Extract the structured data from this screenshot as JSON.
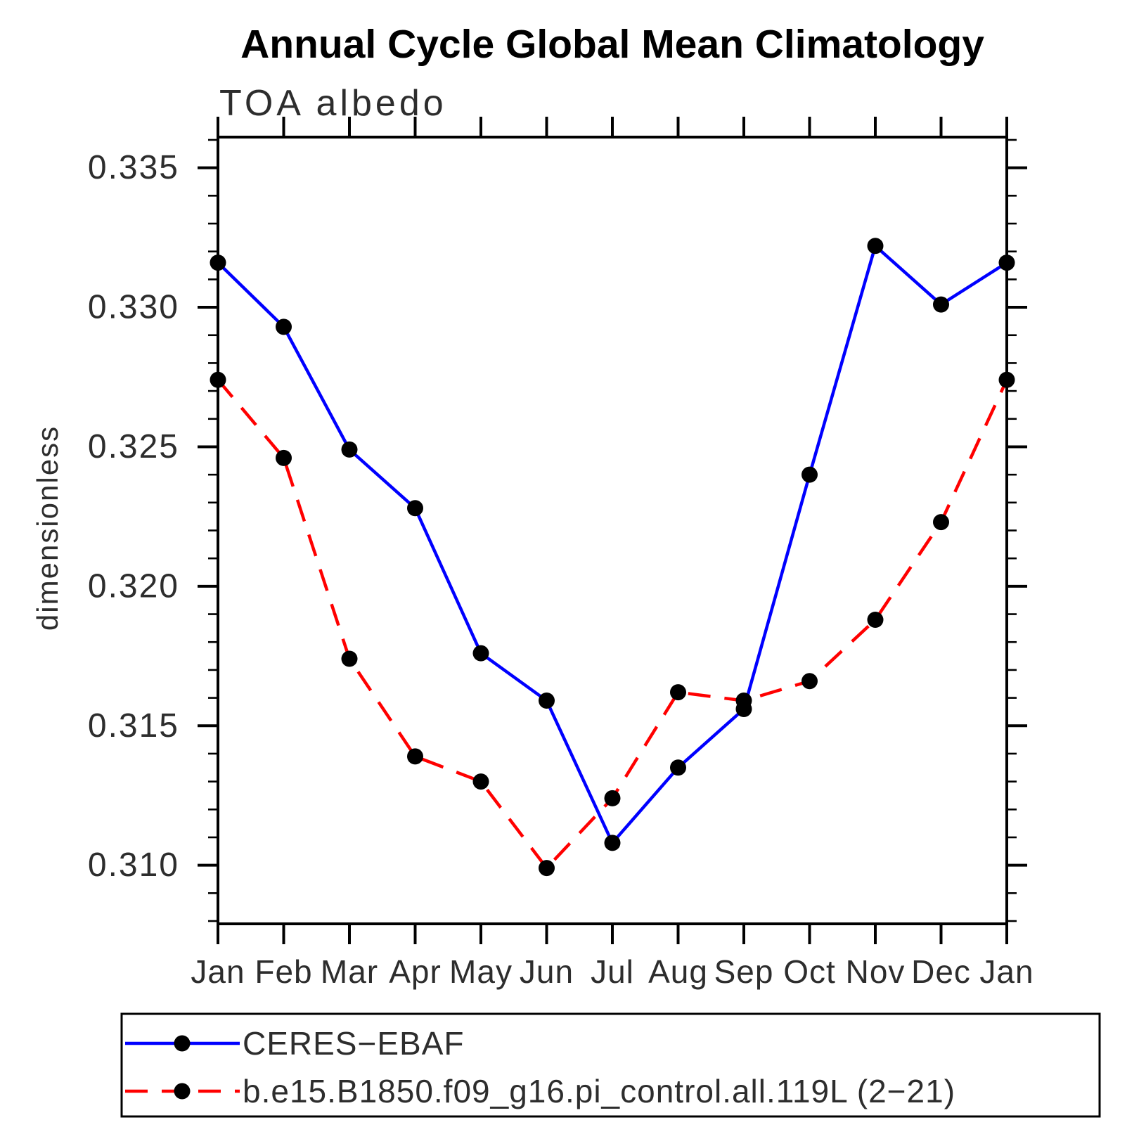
{
  "title": "Annual Cycle Global Mean Climatology",
  "subtitle": "TOA albedo",
  "y_axis_label": "dimensionless",
  "chart_data": {
    "type": "line",
    "title": "Annual Cycle Global Mean Climatology",
    "subtitle": "TOA albedo",
    "xlabel": "",
    "ylabel": "dimensionless",
    "categories": [
      "Jan",
      "Feb",
      "Mar",
      "Apr",
      "May",
      "Jun",
      "Jul",
      "Aug",
      "Sep",
      "Oct",
      "Nov",
      "Dec",
      "Jan"
    ],
    "series": [
      {
        "name": "CERES−EBAF",
        "color": "#0000ff",
        "line_style": "solid",
        "marker": "circle",
        "marker_color": "#000000",
        "values": [
          0.3316,
          0.3293,
          0.3249,
          0.3228,
          0.3176,
          0.3159,
          0.3108,
          0.3135,
          0.3156,
          0.324,
          0.3322,
          0.3301,
          0.3316
        ]
      },
      {
        "name": "b.e15.B1850.f09_g16.pi_control.all.119L (2−21)",
        "color": "#ff0000",
        "line_style": "dashed",
        "marker": "circle",
        "marker_color": "#000000",
        "values": [
          0.3274,
          0.3246,
          0.3174,
          0.3139,
          0.313,
          0.3099,
          0.3124,
          0.3162,
          0.3159,
          0.3166,
          0.3188,
          0.3223,
          0.3274
        ]
      }
    ],
    "ylim": [
      0.3079,
      0.3361
    ],
    "yticks_major": [
      0.31,
      0.315,
      0.32,
      0.325,
      0.33,
      0.335
    ],
    "ytick_minor_step": 0.001,
    "ytick_label_decimals": 3,
    "grid": false,
    "legend_position": "bottom"
  }
}
